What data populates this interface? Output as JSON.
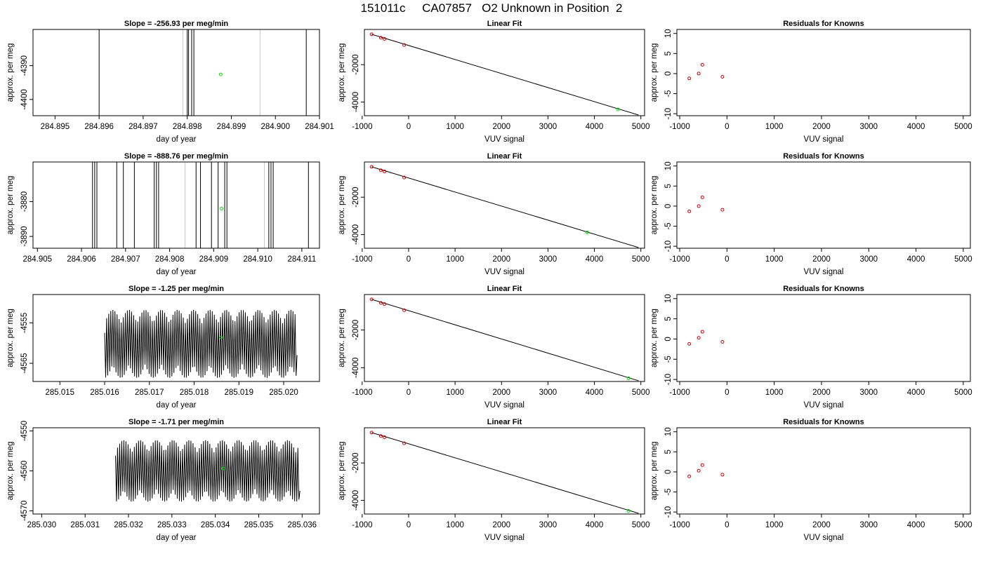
{
  "title": "151011c     CA07857   O2 Unknown in Position  2",
  "chart_data": [
    {
      "row": 0,
      "type": "line",
      "title": "Slope =  -256.93  per meg/min",
      "xlabel": "day of year",
      "ylabel": "approx. per meg",
      "xlim": [
        284.8945,
        284.901
      ],
      "ylim": [
        -4404.8,
        -4379.3
      ],
      "xticks": [
        "284.895",
        "284.896",
        "284.897",
        "284.898",
        "284.899",
        "284.900",
        "284.901"
      ],
      "yticks": [
        "-4390",
        "-4400"
      ],
      "verticals": [
        284.896,
        284.898,
        284.89803,
        284.8981,
        284.89815,
        284.9007
      ],
      "verticals_light": [
        284.8979,
        284.89965
      ],
      "point": {
        "x": 284.89876,
        "y": -4392.6
      }
    },
    {
      "row": 1,
      "type": "line",
      "title": "Slope =  -888.76  per meg/min",
      "xlabel": "day of year",
      "ylabel": "approx. per meg",
      "xlim": [
        284.9049,
        284.9114
      ],
      "ylim": [
        -3893.4,
        -3868.6
      ],
      "xticks": [
        "284.905",
        "284.906",
        "284.907",
        "284.908",
        "284.909",
        "284.910",
        "284.911"
      ],
      "yticks": [
        "-3880",
        "-3890"
      ],
      "verticals": [
        284.90625,
        284.9063,
        284.90635,
        284.9068,
        284.90695,
        284.9072,
        284.90765,
        284.9077,
        284.90775,
        284.9086,
        284.9087,
        284.90895,
        284.9091,
        284.90925,
        284.9093,
        284.91025,
        284.9103,
        284.91035,
        284.91115
      ],
      "verticals_light": [
        284.90835,
        284.91015
      ],
      "point": {
        "x": 284.90918,
        "y": -3882.0
      }
    },
    {
      "row": 2,
      "type": "line",
      "title": "Slope =  -1.25  per meg/min",
      "xlabel": "day of year",
      "ylabel": "approx. per meg",
      "xlim": [
        285.0144,
        285.0208
      ],
      "ylim": [
        -4569.5,
        -4548.0
      ],
      "xticks": [
        "285.015",
        "285.016",
        "285.017",
        "285.018",
        "285.019",
        "285.020"
      ],
      "yticks": [
        "-4555",
        "-4565"
      ],
      "osc": {
        "x_start": 285.016,
        "x_end": 285.0203,
        "cycles": 93,
        "y_center": -4560.2,
        "amp": 6.0,
        "y_first": -4557.5,
        "y_last": -4563.0
      },
      "point": {
        "x": 285.0186,
        "y": -4558.6
      }
    },
    {
      "row": 3,
      "type": "line",
      "title": "Slope =  -1.71  per meg/min",
      "xlabel": "day of year",
      "ylabel": "approx. per meg",
      "xlim": [
        285.0298,
        285.0364
      ],
      "ylim": [
        -4570.8,
        -4549.2
      ],
      "xticks": [
        "285.030",
        "285.031",
        "285.032",
        "285.033",
        "285.034",
        "285.035",
        "285.036"
      ],
      "yticks": [
        "-4550",
        "-4560",
        "-4570"
      ],
      "osc": {
        "x_start": 285.0317,
        "x_end": 285.03595,
        "cycles": 88,
        "y_center": -4560.0,
        "amp": 5.5,
        "y_first": -4556.2,
        "y_last": -4565.0
      },
      "point": {
        "x": 285.03418,
        "y": -4559.4
      }
    },
    {
      "row": 0,
      "type": "scatter",
      "title": "Linear Fit",
      "xlabel": "VUV signal",
      "ylabel": "approx. per meg",
      "xlim": [
        -952,
        5080
      ],
      "ylim": [
        -4729,
        -119
      ],
      "xticks": [
        "-1000",
        "0",
        "1000",
        "2000",
        "3000",
        "4000",
        "5000"
      ],
      "yticks": [
        "-2000",
        "-4000"
      ],
      "knowns": {
        "x": [
          -797,
          -597,
          -520,
          -96
        ],
        "y": [
          -376,
          -565,
          -625,
          -949
        ]
      },
      "unknown": {
        "x": 4507,
        "y": -4392
      },
      "line": {
        "x": [
          -797,
          4950
        ],
        "y": [
          -376,
          -4690
        ]
      }
    },
    {
      "row": 1,
      "type": "scatter",
      "title": "Linear Fit",
      "xlabel": "VUV signal",
      "ylabel": "approx. per meg",
      "xlim": [
        -952,
        5080
      ],
      "ylim": [
        -4729,
        -119
      ],
      "xticks": [
        "-1000",
        "0",
        "1000",
        "2000",
        "3000",
        "4000",
        "5000"
      ],
      "yticks": [
        "-2000",
        "-4000"
      ],
      "knowns": {
        "x": [
          -797,
          -597,
          -520,
          -96
        ],
        "y": [
          -376,
          -565,
          -625,
          -949
        ]
      },
      "unknown": {
        "x": 3845,
        "y": -3884
      },
      "line": {
        "x": [
          -797,
          4950
        ],
        "y": [
          -376,
          -4690
        ]
      }
    },
    {
      "row": 2,
      "type": "scatter",
      "title": "Linear Fit",
      "xlabel": "VUV signal",
      "ylabel": "approx. per meg",
      "xlim": [
        -952,
        5080
      ],
      "ylim": [
        -4729,
        -119
      ],
      "xticks": [
        "-1000",
        "0",
        "1000",
        "2000",
        "3000",
        "4000",
        "5000"
      ],
      "yticks": [
        "-2000",
        "-4000"
      ],
      "knowns": {
        "x": [
          -797,
          -597,
          -520,
          -96
        ],
        "y": [
          -376,
          -565,
          -625,
          -949
        ]
      },
      "unknown": {
        "x": 4735,
        "y": -4560
      },
      "line": {
        "x": [
          -797,
          4950
        ],
        "y": [
          -376,
          -4690
        ]
      }
    },
    {
      "row": 3,
      "type": "scatter",
      "title": "Linear Fit",
      "xlabel": "VUV signal",
      "ylabel": "approx. per meg",
      "xlim": [
        -952,
        5080
      ],
      "ylim": [
        -4729,
        -119
      ],
      "xticks": [
        "-1000",
        "0",
        "1000",
        "2000",
        "3000",
        "4000",
        "5000"
      ],
      "yticks": [
        "-2000",
        "-4000"
      ],
      "knowns": {
        "x": [
          -797,
          -597,
          -520,
          -96
        ],
        "y": [
          -376,
          -565,
          -625,
          -949
        ]
      },
      "unknown": {
        "x": 4735,
        "y": -4560
      },
      "line": {
        "x": [
          -797,
          4950
        ],
        "y": [
          -376,
          -4690
        ]
      }
    },
    {
      "row": 0,
      "type": "scatter",
      "title": "Residuals for Knowns",
      "xlabel": "VUV signal",
      "ylabel": "approx. per meg",
      "xlim": [
        -1060,
        5150
      ],
      "ylim": [
        -10.5,
        11.0
      ],
      "xticks": [
        "-1000",
        "0",
        "1000",
        "2000",
        "3000",
        "4000",
        "5000"
      ],
      "yticks": [
        "-10",
        "-5",
        "0",
        "5",
        "10"
      ],
      "points": {
        "x": [
          -797,
          -597,
          -520,
          -96
        ],
        "y": [
          -1.2,
          0.0,
          2.2,
          -0.8
        ]
      }
    },
    {
      "row": 1,
      "type": "scatter",
      "title": "Residuals for Knowns",
      "xlabel": "VUV signal",
      "ylabel": "approx. per meg",
      "xlim": [
        -1060,
        5150
      ],
      "ylim": [
        -10.5,
        11.0
      ],
      "xticks": [
        "-1000",
        "0",
        "1000",
        "2000",
        "3000",
        "4000",
        "5000"
      ],
      "yticks": [
        "-10",
        "-5",
        "0",
        "5",
        "10"
      ],
      "points": {
        "x": [
          -797,
          -597,
          -520,
          -96
        ],
        "y": [
          -1.3,
          0.0,
          2.2,
          -0.9
        ]
      }
    },
    {
      "row": 2,
      "type": "scatter",
      "title": "Residuals for Knowns",
      "xlabel": "VUV signal",
      "ylabel": "approx. per meg",
      "xlim": [
        -1060,
        5150
      ],
      "ylim": [
        -10.5,
        11.0
      ],
      "xticks": [
        "-1000",
        "0",
        "1000",
        "2000",
        "3000",
        "4000",
        "5000"
      ],
      "yticks": [
        "-10",
        "-5",
        "0",
        "5",
        "10"
      ],
      "points": {
        "x": [
          -797,
          -597,
          -520,
          -96
        ],
        "y": [
          -1.2,
          0.3,
          1.8,
          -0.7
        ]
      }
    },
    {
      "row": 3,
      "type": "scatter",
      "title": "Residuals for Knowns",
      "xlabel": "VUV signal",
      "ylabel": "approx. per meg",
      "xlim": [
        -1060,
        5150
      ],
      "ylim": [
        -10.5,
        11.0
      ],
      "xticks": [
        "-1000",
        "0",
        "1000",
        "2000",
        "3000",
        "4000",
        "5000"
      ],
      "yticks": [
        "-10",
        "-5",
        "0",
        "5",
        "10"
      ],
      "points": {
        "x": [
          -797,
          -597,
          -520,
          -96
        ],
        "y": [
          -1.1,
          0.3,
          1.7,
          -0.7
        ]
      }
    }
  ]
}
